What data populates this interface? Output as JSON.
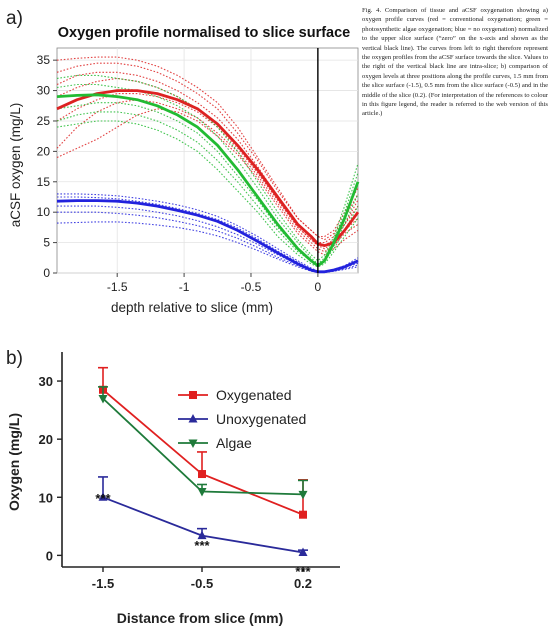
{
  "caption": "Fig. 4. Comparison of tissue and aCSF oxygenation showing a) oxygen profile curves (red = conventional oxygenation; green = photosynthetic algae oxygenation; blue = no oxygenation) normalized to the upper slice surface (“zero” on the x-axis and shown as the vertical black line). The curves from left to right therefore represent the oxygen profiles from the aCSF surface towards the slice. Values to the right of the vertical black line are intra-slice; b) comparison of oxygen levels at three positions along the profile curves, 1.5 mm from the slice surface (-1.5), 0.5 mm from the slice surface (-0.5) and in the middle of the slice (0.2). (For interpretation of the references to colour in this figure legend, the reader is referred to the web version of this article.)",
  "chart_data": [
    {
      "panel": "a)",
      "type": "line",
      "title": "Oxygen profile normalised to slice surface",
      "xlabel": "depth relative to slice (mm)",
      "ylabel": "aCSF oxygen (mg/L)",
      "xlim": [
        -1.95,
        0.3
      ],
      "ylim": [
        0,
        37
      ],
      "xticks": [
        -1.5,
        -1,
        -0.5,
        0
      ],
      "xtick_labels": [
        "-1.5",
        "-1",
        "-0.5",
        "0"
      ],
      "yticks": [
        0,
        5,
        10,
        15,
        20,
        25,
        30,
        35
      ],
      "ytick_labels": [
        "0",
        "5",
        "10",
        "15",
        "20",
        "25",
        "30",
        "35"
      ],
      "vline_x": 0,
      "colors": {
        "red": "#dd2222",
        "green": "#22bb33",
        "blue": "#2222dd"
      },
      "x": [
        -1.95,
        -1.8,
        -1.65,
        -1.5,
        -1.35,
        -1.2,
        -1.05,
        -0.9,
        -0.75,
        -0.6,
        -0.45,
        -0.3,
        -0.15,
        -0.05,
        0,
        0.05,
        0.12,
        0.2,
        0.3
      ],
      "series": [
        {
          "group": "red",
          "style": "mean",
          "values": [
            27,
            28.5,
            29.5,
            30,
            30,
            29.5,
            28.5,
            27,
            24.5,
            21,
            17,
            12.5,
            8,
            6,
            4.8,
            4.5,
            5,
            7,
            10
          ]
        },
        {
          "group": "red",
          "style": "trace",
          "values": [
            35,
            35.3,
            35.5,
            35.5,
            35,
            34,
            32.5,
            30.5,
            28,
            24,
            19,
            14,
            9,
            7,
            6,
            6,
            7,
            10,
            14
          ]
        },
        {
          "group": "red",
          "style": "trace",
          "values": [
            33,
            34,
            34.5,
            34.5,
            34,
            33,
            31.5,
            29.5,
            27,
            23,
            18.5,
            13.5,
            9,
            7,
            6,
            5.5,
            6.5,
            9,
            13
          ]
        },
        {
          "group": "red",
          "style": "trace",
          "values": [
            31,
            32.5,
            33,
            33,
            32.5,
            31.5,
            30,
            28,
            25.5,
            22,
            17.5,
            12.5,
            8,
            6,
            5,
            5,
            6,
            8,
            12
          ]
        },
        {
          "group": "red",
          "style": "trace",
          "values": [
            29,
            30.5,
            31.5,
            32,
            31.5,
            30.5,
            29,
            27,
            24.5,
            21,
            16.5,
            12,
            7.5,
            5.5,
            4.5,
            4.5,
            5.5,
            8,
            11
          ]
        },
        {
          "group": "red",
          "style": "trace",
          "values": [
            25,
            27,
            28.5,
            29.5,
            29.5,
            29,
            28,
            26.5,
            24,
            20.5,
            16.5,
            12,
            7.5,
            5.5,
            4.5,
            4,
            5,
            7,
            9
          ]
        },
        {
          "group": "red",
          "style": "trace",
          "values": [
            20.5,
            24,
            26.5,
            28,
            28.5,
            28,
            27,
            25.5,
            23,
            20,
            16,
            11.5,
            7,
            5,
            4,
            3.5,
            4.5,
            6.5,
            8
          ]
        },
        {
          "group": "red",
          "style": "trace",
          "values": [
            19,
            20.5,
            22,
            24,
            26,
            27,
            26.5,
            25,
            22.5,
            19.5,
            15.5,
            11,
            6.5,
            4.5,
            3.5,
            3,
            4,
            5.5,
            7
          ]
        },
        {
          "group": "green",
          "style": "mean",
          "values": [
            29,
            29.2,
            29.3,
            29,
            28.5,
            27.5,
            26,
            24,
            21,
            17,
            12.5,
            8,
            4,
            2,
            1.2,
            2,
            5,
            9,
            15
          ]
        },
        {
          "group": "green",
          "style": "trace",
          "values": [
            32,
            32.5,
            32.5,
            32,
            31.5,
            30.5,
            29,
            27,
            24,
            20,
            15,
            10,
            5.5,
            3,
            2,
            3,
            6,
            11,
            18
          ]
        },
        {
          "group": "green",
          "style": "trace",
          "values": [
            30.5,
            31,
            31,
            30.5,
            30,
            29,
            27.5,
            25.5,
            22.5,
            18.5,
            14,
            9,
            5,
            2.5,
            1.5,
            2.5,
            5.5,
            10,
            16.5
          ]
        },
        {
          "group": "green",
          "style": "trace",
          "values": [
            27,
            27.5,
            28,
            28,
            27.5,
            26.5,
            25,
            23,
            20,
            16,
            12,
            7.5,
            4,
            2,
            1.5,
            2,
            4.5,
            8,
            13
          ]
        },
        {
          "group": "green",
          "style": "trace",
          "values": [
            25,
            26,
            26.5,
            26.5,
            26,
            25,
            23.5,
            21.5,
            18.5,
            15,
            11,
            7,
            3.5,
            2,
            1.5,
            2,
            4,
            7,
            11
          ]
        },
        {
          "group": "green",
          "style": "trace",
          "values": [
            24,
            24.5,
            25,
            25,
            24.5,
            23.5,
            22,
            20,
            17,
            13.5,
            10,
            6,
            3,
            1.5,
            1,
            1.5,
            3.5,
            6,
            9
          ]
        },
        {
          "group": "blue",
          "style": "mean",
          "values": [
            11.8,
            11.9,
            11.9,
            11.8,
            11.5,
            11,
            10.3,
            9.5,
            8.5,
            7,
            5.2,
            3.3,
            1.5,
            0.5,
            0.2,
            0.2,
            0.5,
            1,
            2
          ]
        },
        {
          "group": "blue",
          "style": "trace",
          "values": [
            13,
            13,
            12.9,
            12.7,
            12.3,
            11.8,
            11.2,
            10.4,
            9.3,
            7.8,
            6,
            4,
            2,
            0.8,
            0.3,
            0.3,
            0.6,
            1.2,
            2.5
          ]
        },
        {
          "group": "blue",
          "style": "trace",
          "values": [
            12.5,
            12.5,
            12.4,
            12.2,
            11.8,
            11.3,
            10.6,
            9.8,
            8.8,
            7.4,
            5.6,
            3.6,
            1.8,
            0.6,
            0.2,
            0.2,
            0.5,
            1,
            2
          ]
        },
        {
          "group": "blue",
          "style": "trace",
          "values": [
            11,
            11,
            11,
            10.8,
            10.5,
            10,
            9.4,
            8.6,
            7.6,
            6.3,
            4.7,
            3,
            1.4,
            0.4,
            0.1,
            0.1,
            0.4,
            0.9,
            1.6
          ]
        },
        {
          "group": "blue",
          "style": "trace",
          "values": [
            10,
            10,
            10,
            9.8,
            9.5,
            9.1,
            8.5,
            7.8,
            6.9,
            5.7,
            4.2,
            2.6,
            1.2,
            0.3,
            0.1,
            0.1,
            0.3,
            0.7,
            1.3
          ]
        },
        {
          "group": "blue",
          "style": "trace",
          "values": [
            8.2,
            8.3,
            8.4,
            8.4,
            8.2,
            7.9,
            7.5,
            6.9,
            6.1,
            5,
            3.7,
            2.3,
            1,
            0.3,
            0.1,
            0.1,
            0.3,
            0.6,
            1
          ]
        }
      ]
    },
    {
      "panel": "b)",
      "type": "line",
      "xlabel": "Distance from slice (mm)",
      "ylabel": "Oxygen (mg/L)",
      "categories": [
        "-1.5",
        "-0.5",
        "0.2"
      ],
      "ylim": [
        -2,
        35
      ],
      "yticks": [
        0,
        10,
        20,
        30
      ],
      "ytick_labels": [
        "0",
        "10",
        "20",
        "30"
      ],
      "legend_position": "top-right",
      "series": [
        {
          "name": "Oxygenated",
          "color": "#e02020",
          "marker": "square",
          "values": [
            28.5,
            14,
            7
          ],
          "err": [
            3.8,
            3.8,
            6
          ]
        },
        {
          "name": "Unoxygenated",
          "color": "#2a2a9a",
          "marker": "triangle-up",
          "values": [
            10,
            3.4,
            0.5
          ],
          "err": [
            3.5,
            1.2,
            0.4
          ]
        },
        {
          "name": "Algae",
          "color": "#1e7a3a",
          "marker": "triangle-down",
          "values": [
            27,
            11,
            10.5
          ],
          "err": [
            2,
            1.2,
            2.4
          ]
        }
      ],
      "annotations": [
        {
          "category": "-1.5",
          "text": "***"
        },
        {
          "category": "-0.5",
          "text": "***"
        },
        {
          "category": "0.2",
          "text": "***"
        }
      ]
    }
  ]
}
